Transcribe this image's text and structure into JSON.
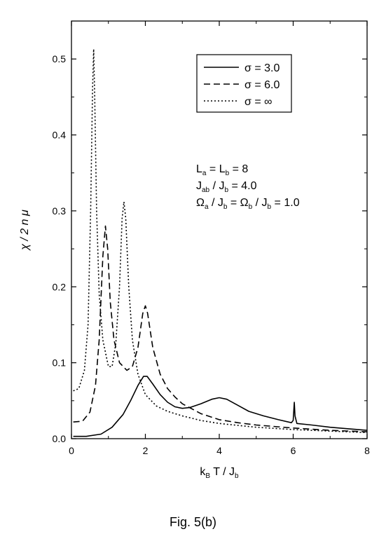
{
  "chart_data": {
    "type": "line",
    "xlabel": {
      "main": "k",
      "sub1": "B",
      "mid": " T / J",
      "sub2": "b"
    },
    "ylabel": {
      "main": "χ / 2 n μ"
    },
    "xlim": [
      0,
      8
    ],
    "ylim": [
      0,
      0.55
    ],
    "xticks": [
      0,
      2,
      4,
      6,
      8
    ],
    "yticks": [
      0.0,
      0.1,
      0.2,
      0.3,
      0.4,
      0.5
    ],
    "xtick_labels": [
      "0",
      "2",
      "4",
      "6",
      "8"
    ],
    "ytick_labels": [
      "0.0",
      "0.1",
      "0.2",
      "0.3",
      "0.4",
      "0.5"
    ],
    "grid": false,
    "legend": {
      "placement": "top-right",
      "entries": [
        {
          "label": "σ = 3.0",
          "style": "solid"
        },
        {
          "label": "σ = 6.0",
          "style": "dashed"
        },
        {
          "label": "σ = ∞",
          "style": "dotted"
        }
      ]
    },
    "annotations": [
      {
        "parts": [
          [
            "L",
            ""
          ],
          [
            "a",
            "sub"
          ],
          [
            " = L",
            ""
          ],
          [
            "b",
            "sub"
          ],
          [
            " = 8",
            ""
          ]
        ]
      },
      {
        "parts": [
          [
            "J",
            ""
          ],
          [
            "ab",
            "sub"
          ],
          [
            " / J",
            ""
          ],
          [
            "b",
            "sub"
          ],
          [
            " = 4.0",
            ""
          ]
        ]
      },
      {
        "parts": [
          [
            "Ω",
            ""
          ],
          [
            "a",
            "sub"
          ],
          [
            " / J",
            ""
          ],
          [
            "b",
            "sub"
          ],
          [
            " = Ω",
            ""
          ],
          [
            "b",
            "sub"
          ],
          [
            " / J",
            ""
          ],
          [
            "b",
            "sub"
          ],
          [
            " = 1.0",
            ""
          ]
        ]
      }
    ],
    "series": [
      {
        "name": "σ = 3.0",
        "style": "solid",
        "points": [
          [
            0.05,
            0.003
          ],
          [
            0.4,
            0.003
          ],
          [
            0.8,
            0.006
          ],
          [
            1.1,
            0.015
          ],
          [
            1.4,
            0.032
          ],
          [
            1.6,
            0.05
          ],
          [
            1.8,
            0.07
          ],
          [
            1.95,
            0.082
          ],
          [
            2.05,
            0.082
          ],
          [
            2.2,
            0.072
          ],
          [
            2.4,
            0.058
          ],
          [
            2.6,
            0.048
          ],
          [
            2.8,
            0.042
          ],
          [
            3.0,
            0.04
          ],
          [
            3.2,
            0.041
          ],
          [
            3.5,
            0.046
          ],
          [
            3.8,
            0.052
          ],
          [
            4.0,
            0.054
          ],
          [
            4.2,
            0.052
          ],
          [
            4.5,
            0.044
          ],
          [
            4.8,
            0.036
          ],
          [
            5.2,
            0.03
          ],
          [
            5.6,
            0.025
          ],
          [
            5.95,
            0.021
          ],
          [
            6.0,
            0.024
          ],
          [
            6.03,
            0.048
          ],
          [
            6.05,
            0.03
          ],
          [
            6.1,
            0.02
          ],
          [
            6.5,
            0.018
          ],
          [
            7.0,
            0.015
          ],
          [
            7.5,
            0.013
          ],
          [
            8.0,
            0.011
          ]
        ]
      },
      {
        "name": "σ = 6.0",
        "style": "dashed",
        "points": [
          [
            0.05,
            0.022
          ],
          [
            0.3,
            0.023
          ],
          [
            0.5,
            0.035
          ],
          [
            0.65,
            0.07
          ],
          [
            0.75,
            0.13
          ],
          [
            0.85,
            0.24
          ],
          [
            0.92,
            0.28
          ],
          [
            0.98,
            0.25
          ],
          [
            1.05,
            0.18
          ],
          [
            1.15,
            0.13
          ],
          [
            1.3,
            0.1
          ],
          [
            1.5,
            0.09
          ],
          [
            1.65,
            0.095
          ],
          [
            1.8,
            0.12
          ],
          [
            1.93,
            0.165
          ],
          [
            2.0,
            0.175
          ],
          [
            2.06,
            0.165
          ],
          [
            2.2,
            0.12
          ],
          [
            2.4,
            0.085
          ],
          [
            2.6,
            0.066
          ],
          [
            2.8,
            0.055
          ],
          [
            3.0,
            0.046
          ],
          [
            3.5,
            0.033
          ],
          [
            4.0,
            0.025
          ],
          [
            4.5,
            0.021
          ],
          [
            5.0,
            0.018
          ],
          [
            6.0,
            0.014
          ],
          [
            7.0,
            0.011
          ],
          [
            8.0,
            0.009
          ]
        ]
      },
      {
        "name": "σ = ∞",
        "style": "dotted",
        "points": [
          [
            0.05,
            0.063
          ],
          [
            0.2,
            0.066
          ],
          [
            0.35,
            0.09
          ],
          [
            0.45,
            0.15
          ],
          [
            0.52,
            0.3
          ],
          [
            0.57,
            0.46
          ],
          [
            0.6,
            0.513
          ],
          [
            0.63,
            0.45
          ],
          [
            0.68,
            0.3
          ],
          [
            0.75,
            0.19
          ],
          [
            0.85,
            0.13
          ],
          [
            1.0,
            0.095
          ],
          [
            1.1,
            0.095
          ],
          [
            1.2,
            0.125
          ],
          [
            1.3,
            0.2
          ],
          [
            1.37,
            0.29
          ],
          [
            1.42,
            0.312
          ],
          [
            1.47,
            0.29
          ],
          [
            1.55,
            0.2
          ],
          [
            1.65,
            0.13
          ],
          [
            1.8,
            0.085
          ],
          [
            2.0,
            0.058
          ],
          [
            2.3,
            0.043
          ],
          [
            2.6,
            0.036
          ],
          [
            3.0,
            0.03
          ],
          [
            3.5,
            0.024
          ],
          [
            4.0,
            0.02
          ],
          [
            5.0,
            0.015
          ],
          [
            6.0,
            0.012
          ],
          [
            7.0,
            0.01
          ],
          [
            8.0,
            0.008
          ]
        ]
      }
    ]
  },
  "caption": "Fig. 5(b)"
}
